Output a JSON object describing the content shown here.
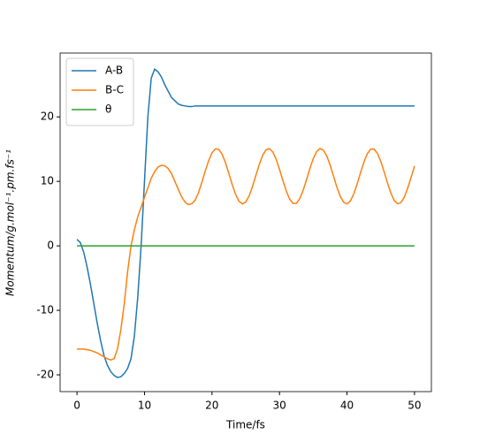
{
  "chart_data": {
    "type": "line",
    "xlabel": "Time/fs",
    "ylabel": "Momentum/g.mol⁻¹.pm.fs⁻¹",
    "x": [
      0,
      0.5,
      1,
      1.5,
      2,
      2.5,
      3,
      3.5,
      4,
      4.5,
      5,
      5.5,
      6,
      6.5,
      7,
      7.5,
      8,
      8.5,
      9,
      9.5,
      10,
      10.5,
      11,
      11.5,
      12,
      12.5,
      13,
      13.5,
      14,
      14.5,
      15,
      15.5,
      16,
      16.5,
      17,
      17.5,
      18,
      18.5,
      19,
      19.5,
      20,
      20.5,
      21,
      21.5,
      22,
      22.5,
      23,
      23.5,
      24,
      24.5,
      25,
      25.5,
      26,
      26.5,
      27,
      27.5,
      28,
      28.5,
      29,
      29.5,
      30,
      30.5,
      31,
      31.5,
      32,
      32.5,
      33,
      33.5,
      34,
      34.5,
      35,
      35.5,
      36,
      36.5,
      37,
      37.5,
      38,
      38.5,
      39,
      39.5,
      40,
      40.5,
      41,
      41.5,
      42,
      42.5,
      43,
      43.5,
      44,
      44.5,
      45,
      45.5,
      46,
      46.5,
      47,
      47.5,
      48,
      48.5,
      49,
      49.5,
      50
    ],
    "series": [
      {
        "name": "A-B",
        "color": "#1f77b4",
        "values": [
          1,
          0.5,
          -1,
          -3.3,
          -6,
          -9,
          -12,
          -14.7,
          -17,
          -18.5,
          -19.5,
          -20.1,
          -20.4,
          -20.3,
          -19.8,
          -19,
          -17.5,
          -14,
          -8,
          0,
          10,
          20,
          26,
          27.4,
          27,
          26.2,
          25,
          24,
          23,
          22.5,
          22,
          21.8,
          21.7,
          21.6,
          21.6,
          21.7,
          21.7,
          21.7,
          21.7,
          21.7,
          21.7,
          21.7,
          21.7,
          21.7,
          21.7,
          21.7,
          21.7,
          21.7,
          21.7,
          21.7,
          21.7,
          21.7,
          21.7,
          21.7,
          21.7,
          21.7,
          21.7,
          21.7,
          21.7,
          21.7,
          21.7,
          21.7,
          21.7,
          21.7,
          21.7,
          21.7,
          21.7,
          21.7,
          21.7,
          21.7,
          21.7,
          21.7,
          21.7,
          21.7,
          21.7,
          21.7,
          21.7,
          21.7,
          21.7,
          21.7,
          21.7,
          21.7,
          21.7,
          21.7,
          21.7,
          21.7,
          21.7,
          21.7,
          21.7,
          21.7,
          21.7,
          21.7,
          21.7,
          21.7,
          21.7,
          21.7,
          21.7,
          21.7,
          21.7,
          21.7,
          21.7
        ]
      },
      {
        "name": "B-C",
        "color": "#ff7f0e",
        "values": [
          -16,
          -16,
          -16,
          -16.1,
          -16.2,
          -16.4,
          -16.6,
          -16.9,
          -17.2,
          -17.5,
          -17.7,
          -17.5,
          -16,
          -13,
          -9,
          -4,
          0,
          2.5,
          4.5,
          6,
          7.5,
          9,
          10.5,
          11.5,
          12.2,
          12.5,
          12.4,
          12,
          11.2,
          10,
          8.8,
          7.6,
          6.8,
          6.4,
          6.53,
          7.09,
          8.26,
          9.85,
          11.59,
          13.2,
          14.43,
          15.04,
          14.97,
          14.21,
          12.89,
          11.22,
          9.48,
          7.97,
          6.92,
          6.5,
          6.8,
          7.75,
          9.2,
          10.92,
          12.62,
          14.02,
          14.89,
          15.08,
          14.58,
          13.45,
          11.88,
          10.14,
          8.51,
          7.25,
          6.58,
          6.6,
          7.31,
          8.6,
          10.25,
          11.99,
          13.53,
          14.62,
          15.09,
          14.85,
          13.94,
          12.52,
          10.81,
          9.11,
          7.67,
          6.76,
          6.51,
          6.96,
          8.05,
          9.59,
          11.32,
          12.98,
          14.27,
          15,
          15.03,
          14.36,
          13.12,
          11.49,
          9.75,
          8.18,
          7.04,
          6.52,
          6.71,
          7.57,
          8.96,
          10.65,
          12.37
        ]
      },
      {
        "name": "θ",
        "color": "#2ca02c",
        "values": [
          0,
          0,
          0,
          0,
          0,
          0,
          0,
          0,
          0,
          0,
          0,
          0,
          0,
          0,
          0,
          0,
          0,
          0,
          0,
          0,
          0,
          0,
          0,
          0,
          0,
          0,
          0,
          0,
          0,
          0,
          0,
          0,
          0,
          0,
          0,
          0,
          0,
          0,
          0,
          0,
          0,
          0,
          0,
          0,
          0,
          0,
          0,
          0,
          0,
          0,
          0,
          0,
          0,
          0,
          0,
          0,
          0,
          0,
          0,
          0,
          0,
          0,
          0,
          0,
          0,
          0,
          0,
          0,
          0,
          0,
          0,
          0,
          0,
          0,
          0,
          0,
          0,
          0,
          0,
          0,
          0,
          0,
          0,
          0,
          0,
          0,
          0,
          0,
          0,
          0,
          0,
          0,
          0,
          0,
          0,
          0,
          0,
          0,
          0,
          0,
          0
        ]
      }
    ],
    "xlim": [
      -2.5,
      52.5
    ],
    "ylim": [
      -22.6,
      29.9
    ],
    "xticks": [
      0,
      10,
      20,
      30,
      40,
      50
    ],
    "yticks": [
      -20,
      -10,
      0,
      10,
      20
    ],
    "legend": "upper left"
  }
}
